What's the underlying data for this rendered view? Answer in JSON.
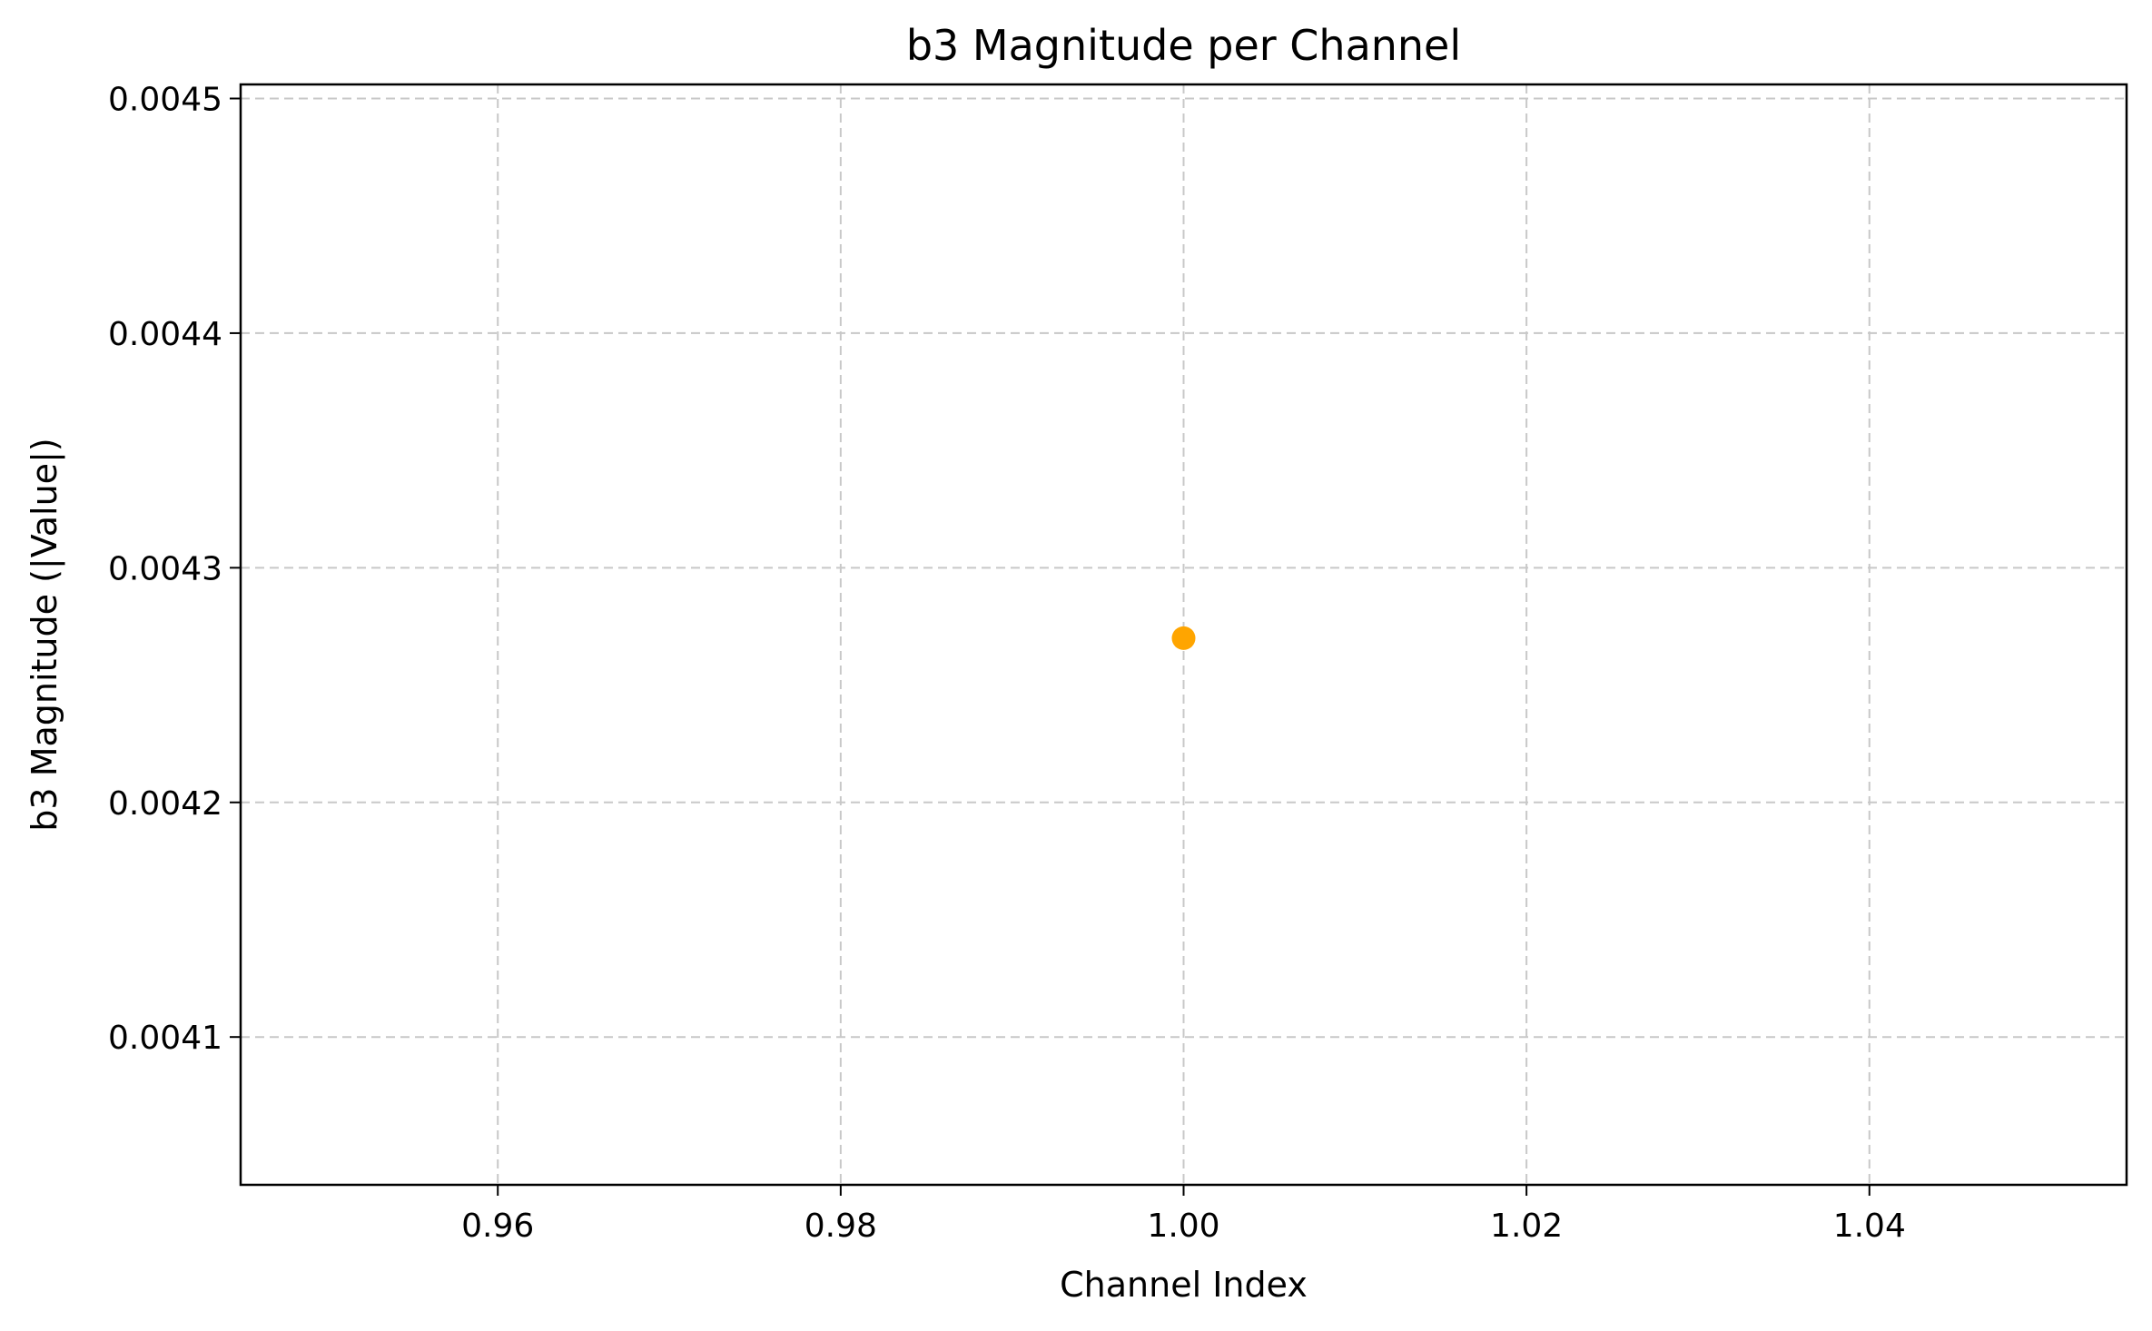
{
  "chart_data": {
    "type": "scatter",
    "title": "b3 Magnitude per Channel",
    "xlabel": "Channel Index",
    "ylabel": "b3 Magnitude (|Value|)",
    "xlim": [
      0.945,
      1.055
    ],
    "ylim": [
      0.004037,
      0.004506
    ],
    "xticks": [
      0.96,
      0.98,
      1.0,
      1.02,
      1.04
    ],
    "xtick_labels": [
      "0.96",
      "0.98",
      "1.00",
      "1.02",
      "1.04"
    ],
    "yticks": [
      0.0041,
      0.0042,
      0.0043,
      0.0044,
      0.0045
    ],
    "ytick_labels": [
      "0.0041",
      "0.0042",
      "0.0043",
      "0.0044",
      "0.0045"
    ],
    "grid": true,
    "series": [
      {
        "color": "#ffa500",
        "points": [
          {
            "x": 1.0,
            "y": 0.00427
          }
        ]
      }
    ]
  }
}
